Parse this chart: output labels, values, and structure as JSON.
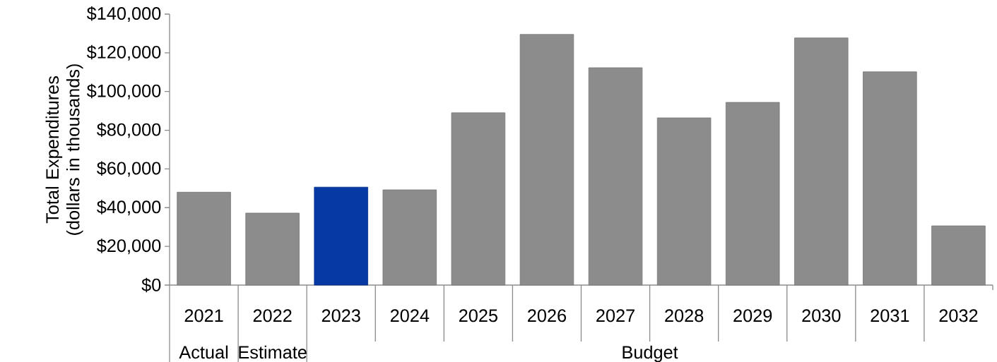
{
  "chart_data": {
    "type": "bar",
    "ylabel": "Total Expenditures (dollars in thousands)",
    "categories": [
      "2021",
      "2022",
      "2023",
      "2024",
      "2025",
      "2026",
      "2027",
      "2028",
      "2029",
      "2030",
      "2031",
      "2032"
    ],
    "values": [
      48000,
      37200,
      50600,
      49200,
      89000,
      129500,
      112300,
      86400,
      94400,
      127700,
      110200,
      30600
    ],
    "colors": [
      "#8c8c8c",
      "#8c8c8c",
      "#0639a4",
      "#8c8c8c",
      "#8c8c8c",
      "#8c8c8c",
      "#8c8c8c",
      "#8c8c8c",
      "#8c8c8c",
      "#8c8c8c",
      "#8c8c8c",
      "#8c8c8c"
    ],
    "ylim": [
      0,
      140000
    ],
    "yticks": [
      {
        "value": 0,
        "label": "$0"
      },
      {
        "value": 20000,
        "label": "$20,000"
      },
      {
        "value": 40000,
        "label": "$40,000"
      },
      {
        "value": 60000,
        "label": "$60,000"
      },
      {
        "value": 80000,
        "label": "$80,000"
      },
      {
        "value": 100000,
        "label": "$100,000"
      },
      {
        "value": 120000,
        "label": "$120,000"
      },
      {
        "value": 140000,
        "label": "$140,000"
      }
    ],
    "annotations": [
      "Actual",
      "Estimate",
      "Budget"
    ]
  }
}
